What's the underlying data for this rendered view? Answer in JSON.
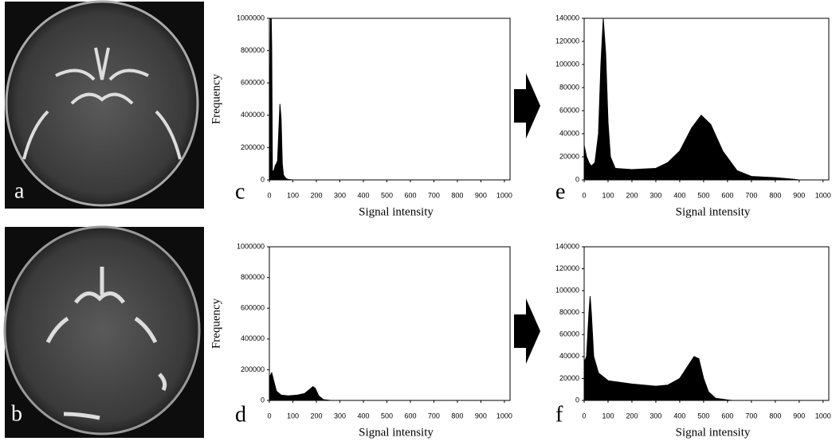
{
  "images": [
    {
      "label": "a"
    },
    {
      "label": "b"
    }
  ],
  "chart_data": [
    {
      "type": "area",
      "panel_label": "c",
      "xlabel": "Signal intensity",
      "ylabel": "Frequency",
      "color": "#000000",
      "xlim": [
        0,
        1024
      ],
      "xticks": [
        0,
        100,
        200,
        300,
        400,
        500,
        600,
        700,
        800,
        900,
        1000
      ],
      "ylim": [
        0,
        1000000
      ],
      "yticks": [
        0,
        200000,
        400000,
        600000,
        800000,
        1000000
      ],
      "x": [
        0,
        5,
        8,
        10,
        13,
        20,
        25,
        30,
        35,
        40,
        45,
        50,
        55,
        60,
        70,
        80,
        100
      ],
      "values": [
        50000,
        1000000,
        1000000,
        820000,
        50000,
        60000,
        90000,
        100000,
        120000,
        300000,
        470000,
        380000,
        100000,
        30000,
        10000,
        3000,
        0
      ]
    },
    {
      "type": "area",
      "panel_label": "d",
      "xlabel": "Signal intensity",
      "ylabel": "Frequency",
      "color": "#000000",
      "xlim": [
        0,
        1024
      ],
      "xticks": [
        0,
        100,
        200,
        300,
        400,
        500,
        600,
        700,
        800,
        900,
        1000
      ],
      "ylim": [
        0,
        1000000
      ],
      "yticks": [
        0,
        200000,
        400000,
        600000,
        800000,
        1000000
      ],
      "x": [
        0,
        10,
        20,
        30,
        50,
        80,
        120,
        150,
        170,
        185,
        195,
        210,
        230,
        260
      ],
      "values": [
        150000,
        180000,
        120000,
        60000,
        35000,
        30000,
        35000,
        45000,
        70000,
        90000,
        80000,
        30000,
        5000,
        0
      ]
    },
    {
      "type": "area",
      "panel_label": "e",
      "xlabel": "Signal intensity",
      "color": "#000000",
      "xlim": [
        0,
        1024
      ],
      "xticks": [
        0,
        100,
        200,
        300,
        400,
        500,
        600,
        700,
        800,
        900,
        1000
      ],
      "ylim": [
        0,
        140000
      ],
      "yticks": [
        0,
        20000,
        40000,
        60000,
        80000,
        100000,
        120000,
        140000
      ],
      "x": [
        0,
        10,
        20,
        30,
        45,
        60,
        70,
        80,
        90,
        100,
        110,
        130,
        200,
        300,
        350,
        400,
        450,
        490,
        530,
        580,
        640,
        700,
        800,
        880,
        900
      ],
      "values": [
        30000,
        20000,
        15000,
        12000,
        15000,
        40000,
        100000,
        140000,
        110000,
        50000,
        20000,
        10000,
        9000,
        10000,
        15000,
        25000,
        45000,
        56000,
        48000,
        25000,
        8000,
        3000,
        2000,
        500,
        0
      ]
    },
    {
      "type": "area",
      "panel_label": "f",
      "xlabel": "Signal intensity",
      "color": "#000000",
      "xlim": [
        0,
        1024
      ],
      "xticks": [
        0,
        100,
        200,
        300,
        400,
        500,
        600,
        700,
        800,
        900,
        1000
      ],
      "ylim": [
        0,
        140000
      ],
      "yticks": [
        0,
        20000,
        40000,
        60000,
        80000,
        100000,
        120000,
        140000
      ],
      "x": [
        0,
        10,
        20,
        25,
        30,
        40,
        60,
        100,
        200,
        300,
        350,
        400,
        430,
        460,
        480,
        500,
        520,
        550,
        600,
        620
      ],
      "values": [
        35000,
        40000,
        80000,
        95000,
        80000,
        40000,
        25000,
        18000,
        15000,
        13000,
        14000,
        20000,
        30000,
        40000,
        38000,
        20000,
        8000,
        2000,
        500,
        0
      ]
    }
  ]
}
